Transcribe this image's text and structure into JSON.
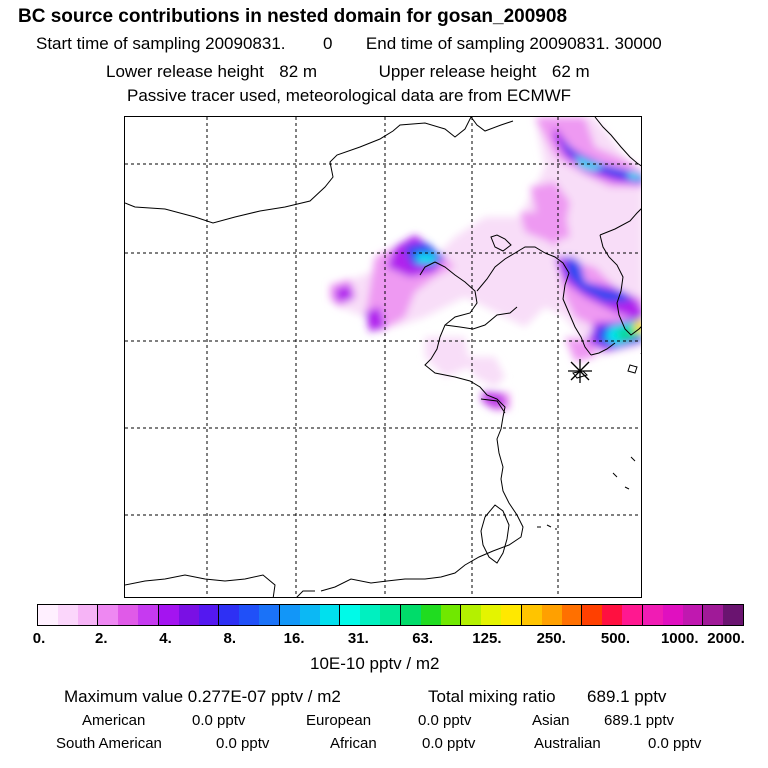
{
  "header": {
    "title": "BC  source contributions in nested domain for gosan_200908",
    "start_label": "Start time of sampling",
    "start_date": "20090831.",
    "start_time": "0",
    "end_label": "End time of sampling",
    "end_value": "20090831. 30000",
    "lower_label": "Lower release height",
    "lower_value": "82 m",
    "upper_label": "Upper release height",
    "upper_value": "62 m",
    "note": "Passive tracer used, meteorological data are from ECMWF"
  },
  "colorbar": {
    "colors": [
      "#fff0ff",
      "#fbd6fb",
      "#f6b4f6",
      "#ee88f2",
      "#e05ae8",
      "#c63af0",
      "#a414f0",
      "#7a10e4",
      "#5418f0",
      "#2e30f4",
      "#2050f8",
      "#1a72f8",
      "#1296f8",
      "#0cb8f4",
      "#00e0ee",
      "#00fae8",
      "#00f0c0",
      "#00e896",
      "#00dc6a",
      "#20dc20",
      "#70e800",
      "#b4f000",
      "#e4f400",
      "#ffe800",
      "#ffc400",
      "#ffa000",
      "#ff7000",
      "#ff4000",
      "#ff1040",
      "#ff1890",
      "#f01cb4",
      "#e010c0",
      "#c018b0",
      "#a01a98",
      "#6a1470"
    ],
    "ticks": [
      "0.",
      "2.",
      "4.",
      "8.",
      "16.",
      "31.",
      "63.",
      "125.",
      "250.",
      "500.",
      "1000.",
      "2000."
    ],
    "unit": "10E-10 pptv / m2"
  },
  "stats": {
    "max_label": "Maximum value",
    "max_value": "0.277E-07 pptv / m2",
    "total_label": "Total mixing ratio",
    "total_value": "689.1 pptv",
    "american_label": "American",
    "american_value": "0.0 pptv",
    "european_label": "European",
    "european_value": "0.0 pptv",
    "asian_label": "Asian",
    "asian_value": "689.1 pptv",
    "south_american_label": "South American",
    "south_american_value": "0.0 pptv",
    "african_label": "African",
    "african_value": "0.0 pptv",
    "australian_label": "Australian",
    "australian_value": "0.0 pptv"
  }
}
